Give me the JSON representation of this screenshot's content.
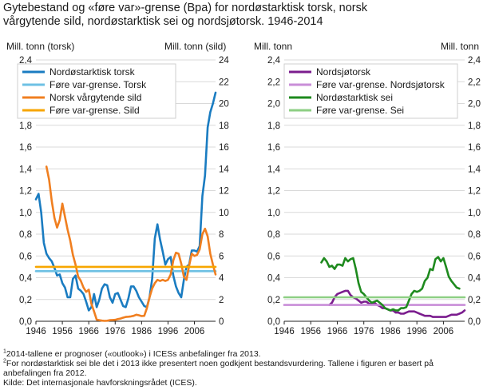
{
  "title": {
    "line1": "Gytebestand og «føre var»-grense (Bpa) for nordøstarktisk torsk, norsk",
    "line2": "vårgytende sild, nordøstarktisk sei og nordsjøtorsk. 1946-2014"
  },
  "footnotes": {
    "note1_mark": "1",
    "note1": "2014-tallene er prognoser («outlook») i ICESs anbefalinger fra 2013.",
    "note2_mark": "2",
    "note2_line1": "For nordøstarktisk sei ble det i 2013 ikke presentert noen godkjent bestandsvurdering. Tallene i figuren er basert på",
    "note2_line2": "anbefalingen fra 2012.",
    "source": "Kilde: Det internasjonale havforskningsrådet (ICES)."
  },
  "colors": {
    "torsk": "#1a7cc1",
    "torsk_bpa": "#6ec1e4",
    "sild": "#f07f20",
    "sild_bpa": "#f7a600",
    "nordsjotorsk": "#7b1d8e",
    "nordsjotorsk_bpa": "#c98ed8",
    "sei": "#1e8a1e",
    "sei_bpa": "#8ecf84",
    "grid": "#d9d9d9",
    "axis": "#222222"
  },
  "chart_data": [
    {
      "type": "line",
      "ylabel": "Mill. tonn (torsk)",
      "y2label": "Mill. tonn (sild)",
      "ylim": [
        0,
        2.4
      ],
      "y2lim": [
        0,
        24
      ],
      "y_ticks": [
        "0,0",
        "0,2",
        "0,4",
        "0,6",
        "0,8",
        "1,0",
        "1,2",
        "1,4",
        "1,6",
        "1,8",
        "2,0",
        "2,2",
        "2,4"
      ],
      "y2_ticks": [
        "0",
        "2",
        "4",
        "6",
        "8",
        "10",
        "12",
        "14",
        "16",
        "18",
        "20",
        "22",
        "24"
      ],
      "xlim": [
        1946,
        2014
      ],
      "x_ticks": [
        "1946",
        "1956",
        "1966",
        "1976",
        "1986",
        "1996",
        "2006"
      ],
      "grid": true,
      "legend": "top-left",
      "series": [
        {
          "name": "Nordøstarktisk torsk",
          "axis": "left",
          "color": "torsk",
          "x": [
            1946,
            1947,
            1948,
            1949,
            1950,
            1951,
            1952,
            1953,
            1954,
            1955,
            1956,
            1957,
            1958,
            1959,
            1960,
            1961,
            1962,
            1963,
            1964,
            1965,
            1966,
            1967,
            1968,
            1969,
            1970,
            1971,
            1972,
            1973,
            1974,
            1975,
            1976,
            1977,
            1978,
            1979,
            1980,
            1981,
            1982,
            1983,
            1984,
            1985,
            1986,
            1987,
            1988,
            1989,
            1990,
            1991,
            1992,
            1993,
            1994,
            1995,
            1996,
            1997,
            1998,
            1999,
            2000,
            2001,
            2002,
            2003,
            2004,
            2005,
            2006,
            2007,
            2008,
            2009,
            2010,
            2011,
            2012,
            2013,
            2014
          ],
          "y": [
            1.12,
            1.17,
            1.0,
            0.72,
            0.62,
            0.58,
            0.55,
            0.49,
            0.42,
            0.43,
            0.35,
            0.31,
            0.22,
            0.22,
            0.39,
            0.42,
            0.3,
            0.28,
            0.25,
            0.18,
            0.1,
            0.13,
            0.25,
            0.13,
            0.2,
            0.3,
            0.34,
            0.33,
            0.22,
            0.17,
            0.25,
            0.26,
            0.2,
            0.14,
            0.13,
            0.21,
            0.32,
            0.32,
            0.28,
            0.22,
            0.18,
            0.14,
            0.13,
            0.22,
            0.39,
            0.76,
            0.89,
            0.75,
            0.64,
            0.52,
            0.57,
            0.59,
            0.42,
            0.32,
            0.26,
            0.22,
            0.38,
            0.5,
            0.52,
            0.65,
            0.65,
            0.64,
            0.69,
            1.15,
            1.34,
            1.78,
            1.92,
            2.0,
            2.1
          ]
        },
        {
          "name": "Føre var-grense. Torsk",
          "axis": "left",
          "color": "torsk_bpa",
          "x": [
            1946,
            2014
          ],
          "y": [
            0.46,
            0.46
          ]
        },
        {
          "name": "Norsk vårgytende sild",
          "axis": "right",
          "color": "sild",
          "x": [
            1950,
            1951,
            1952,
            1953,
            1954,
            1955,
            1956,
            1957,
            1958,
            1959,
            1960,
            1961,
            1962,
            1963,
            1964,
            1965,
            1966,
            1967,
            1968,
            1969,
            1970,
            1971,
            1972,
            1973,
            1974,
            1975,
            1976,
            1977,
            1978,
            1979,
            1980,
            1981,
            1982,
            1983,
            1984,
            1985,
            1986,
            1987,
            1988,
            1989,
            1990,
            1991,
            1992,
            1993,
            1994,
            1995,
            1996,
            1997,
            1998,
            1999,
            2000,
            2001,
            2002,
            2003,
            2004,
            2005,
            2006,
            2007,
            2008,
            2009,
            2010,
            2011,
            2012,
            2013,
            2014
          ],
          "y": [
            14.2,
            13.0,
            11.0,
            9.5,
            8.6,
            9.3,
            10.8,
            9.6,
            8.4,
            7.4,
            6.1,
            5.2,
            4.1,
            3.7,
            3.1,
            2.7,
            2.9,
            1.6,
            0.9,
            0.15,
            0.1,
            0.06,
            0.04,
            0.05,
            0.1,
            0.12,
            0.13,
            0.2,
            0.25,
            0.33,
            0.4,
            0.42,
            0.45,
            0.5,
            0.6,
            0.55,
            0.48,
            0.5,
            1.2,
            2.2,
            3.0,
            3.5,
            3.8,
            3.7,
            3.8,
            3.7,
            3.8,
            4.3,
            5.6,
            6.3,
            6.2,
            5.3,
            4.1,
            3.8,
            5.1,
            6.2,
            6.0,
            6.1,
            6.6,
            8.0,
            8.5,
            7.8,
            6.2,
            5.2,
            4.3
          ]
        },
        {
          "name": "Føre var-grense. Sild",
          "axis": "right",
          "color": "sild_bpa",
          "x": [
            1946,
            2014
          ],
          "y": [
            5.0,
            5.0
          ]
        }
      ]
    },
    {
      "type": "line",
      "ylabel": "Mill. tonn",
      "y2label": "Mill. tonn",
      "ylim": [
        0,
        2.4
      ],
      "y2lim": [
        0,
        2.4
      ],
      "y_ticks": [
        "0,0",
        "0,2",
        "0,4",
        "0,6",
        "0,8",
        "1,0",
        "1,2",
        "1,4",
        "1,6",
        "1,8",
        "2,0",
        "2,2",
        "2,4"
      ],
      "y2_ticks": [
        "0,0",
        "0,2",
        "0,4",
        "0,6",
        "0,8",
        "1,0",
        "1,2",
        "1,4",
        "1,6",
        "1,8",
        "2,0",
        "2,2",
        "2,4"
      ],
      "xlim": [
        1946,
        2014
      ],
      "x_ticks": [
        "1946",
        "1956",
        "1966",
        "1976",
        "1986",
        "1996",
        "2006"
      ],
      "grid": true,
      "legend": "top-left",
      "series": [
        {
          "name": "Nordsjøtorsk",
          "axis": "left",
          "color": "nordsjotorsk",
          "x": [
            1963,
            1964,
            1965,
            1966,
            1967,
            1968,
            1969,
            1970,
            1971,
            1972,
            1973,
            1974,
            1975,
            1976,
            1977,
            1978,
            1979,
            1980,
            1981,
            1982,
            1983,
            1984,
            1985,
            1986,
            1987,
            1988,
            1989,
            1990,
            1991,
            1992,
            1993,
            1994,
            1995,
            1996,
            1997,
            1998,
            1999,
            2000,
            2001,
            2002,
            2003,
            2004,
            2005,
            2006,
            2007,
            2008,
            2009,
            2010,
            2011,
            2012,
            2013,
            2014
          ],
          "y": [
            0.15,
            0.17,
            0.22,
            0.25,
            0.26,
            0.27,
            0.28,
            0.28,
            0.24,
            0.22,
            0.21,
            0.19,
            0.17,
            0.18,
            0.18,
            0.16,
            0.16,
            0.17,
            0.15,
            0.14,
            0.12,
            0.12,
            0.11,
            0.1,
            0.1,
            0.08,
            0.08,
            0.07,
            0.07,
            0.08,
            0.09,
            0.09,
            0.09,
            0.08,
            0.07,
            0.06,
            0.05,
            0.05,
            0.05,
            0.04,
            0.04,
            0.04,
            0.04,
            0.04,
            0.04,
            0.05,
            0.06,
            0.06,
            0.06,
            0.07,
            0.08,
            0.1
          ]
        },
        {
          "name": "Føre var-grense. Nordsjøtorsk",
          "axis": "left",
          "color": "nordsjotorsk_bpa",
          "x": [
            1946,
            2014
          ],
          "y": [
            0.15,
            0.15
          ]
        },
        {
          "name": "Nordøstarktisk sei",
          "axis": "left",
          "color": "sei",
          "x": [
            1960,
            1961,
            1962,
            1963,
            1964,
            1965,
            1966,
            1967,
            1968,
            1969,
            1970,
            1971,
            1972,
            1973,
            1974,
            1975,
            1976,
            1977,
            1978,
            1979,
            1980,
            1981,
            1982,
            1983,
            1984,
            1985,
            1986,
            1987,
            1988,
            1989,
            1990,
            1991,
            1992,
            1993,
            1994,
            1995,
            1996,
            1997,
            1998,
            1999,
            2000,
            2001,
            2002,
            2003,
            2004,
            2005,
            2006,
            2007,
            2008,
            2009,
            2010,
            2011,
            2012
          ],
          "y": [
            0.54,
            0.58,
            0.55,
            0.5,
            0.51,
            0.48,
            0.52,
            0.52,
            0.51,
            0.58,
            0.55,
            0.57,
            0.58,
            0.48,
            0.35,
            0.27,
            0.25,
            0.22,
            0.19,
            0.17,
            0.18,
            0.19,
            0.17,
            0.15,
            0.12,
            0.11,
            0.1,
            0.11,
            0.1,
            0.1,
            0.12,
            0.12,
            0.13,
            0.19,
            0.25,
            0.28,
            0.27,
            0.28,
            0.3,
            0.37,
            0.4,
            0.48,
            0.47,
            0.57,
            0.59,
            0.55,
            0.58,
            0.5,
            0.41,
            0.37,
            0.34,
            0.31,
            0.3
          ]
        },
        {
          "name": "Føre var-grense. Sei",
          "axis": "left",
          "color": "sei_bpa",
          "x": [
            1946,
            2014
          ],
          "y": [
            0.22,
            0.22
          ]
        }
      ]
    }
  ]
}
